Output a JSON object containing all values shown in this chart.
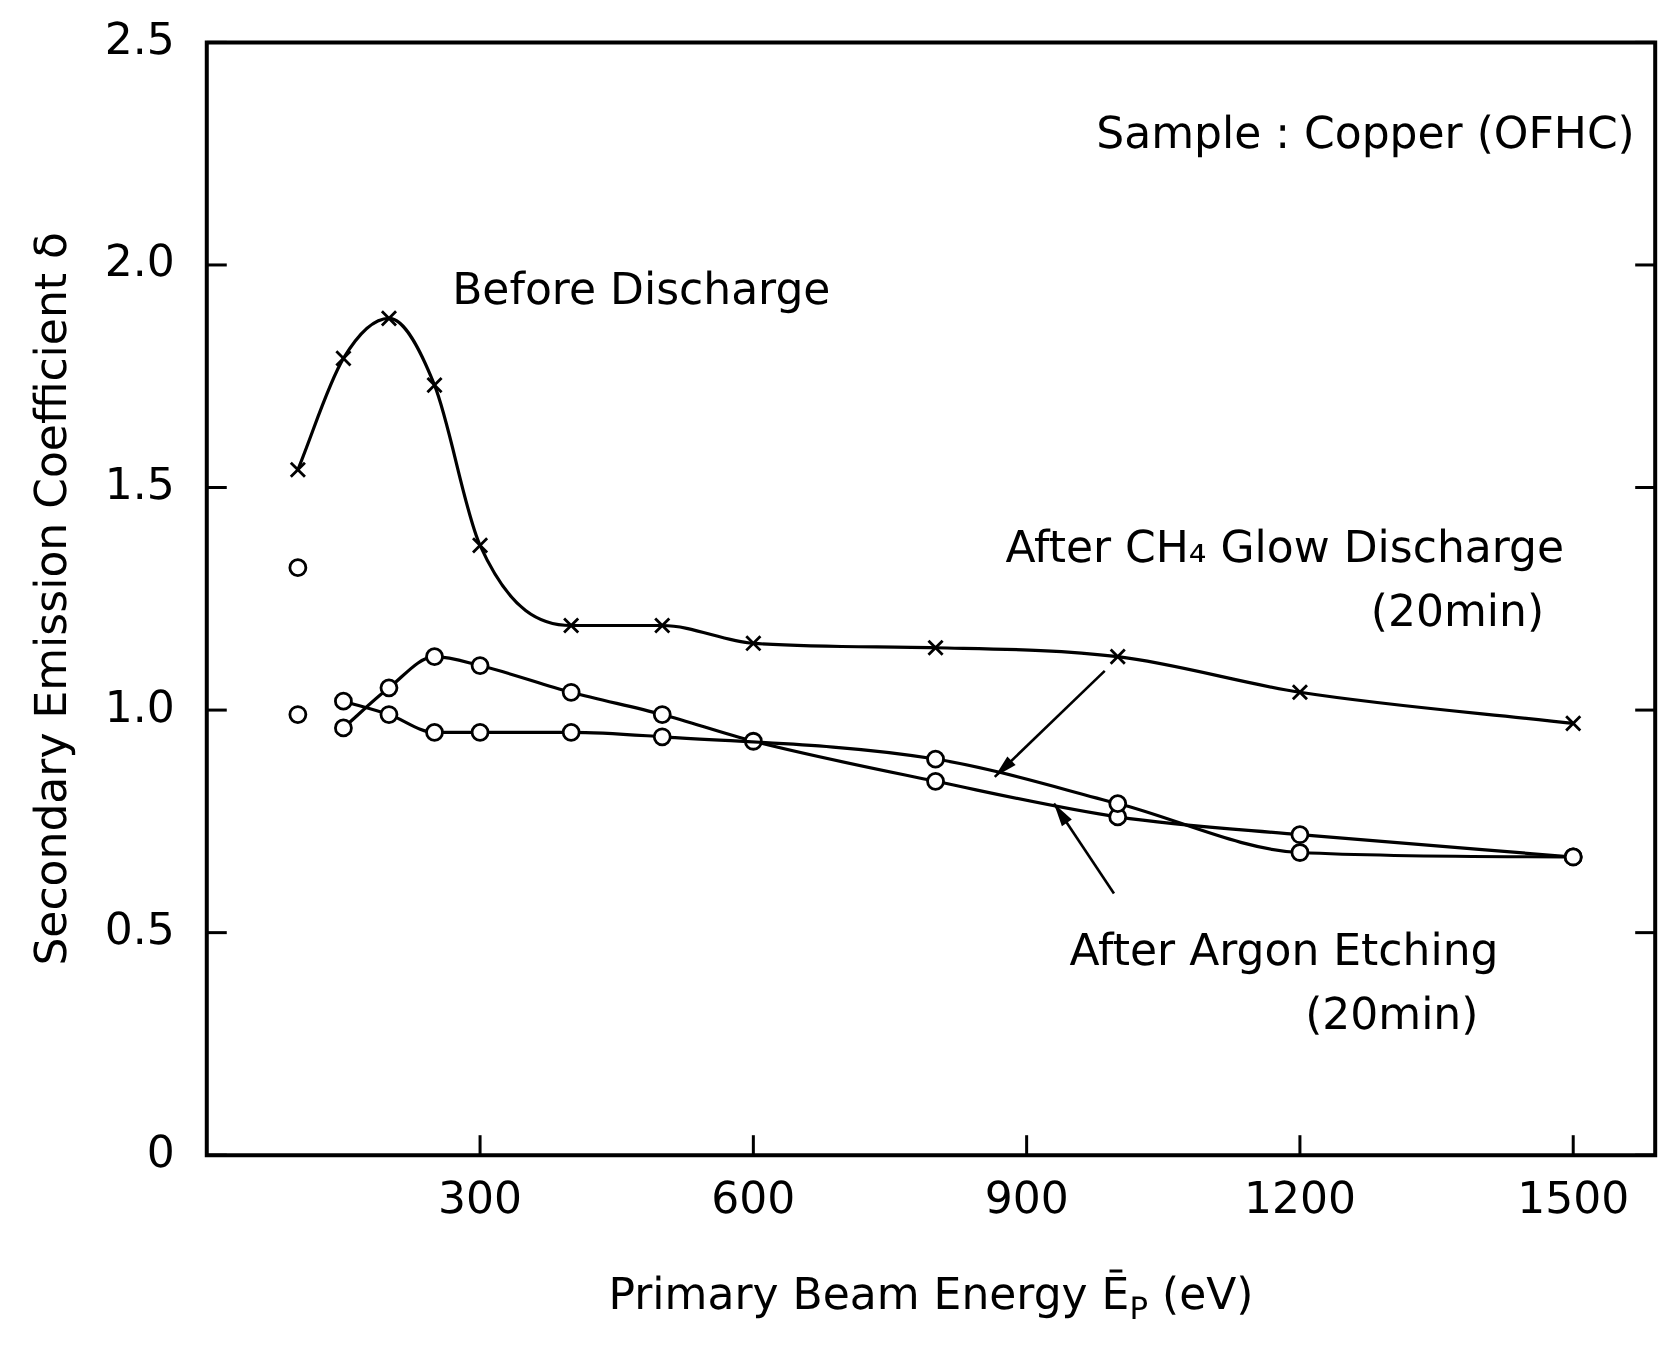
{
  "chart_data": {
    "type": "line",
    "xlabel": "Primary Beam Energy Ē$_{P}$ (eV)",
    "ylabel": "Secondary Emission Coefficient δ",
    "xlim": [
      0,
      1590
    ],
    "xticks": [
      300,
      600,
      900,
      1200,
      1500
    ],
    "ylim": [
      0,
      2.5
    ],
    "yticks": [
      0,
      {
        "value": 0.5,
        "label": "0.5"
      },
      {
        "value": 1,
        "label": "1.0"
      },
      {
        "value": 1.5,
        "label": "1.5"
      },
      {
        "value": 2,
        "label": "2.0"
      },
      {
        "value": 2.5,
        "label": "2.5"
      }
    ],
    "grid": false,
    "legend": false,
    "line_style": "solid",
    "series": [
      {
        "marker": "cross",
        "color": "#000000",
        "x": [
          100,
          150,
          200,
          250,
          300,
          400,
          500,
          600,
          800,
          1000,
          1200,
          1500
        ],
        "values": [
          1.54,
          1.79,
          1.88,
          1.73,
          1.37,
          1.19,
          1.19,
          1.15,
          1.14,
          1.12,
          1.04,
          0.97
        ]
      },
      {
        "marker": "circle",
        "color": "#000000",
        "x": [
          100,
          125,
          150,
          200,
          250,
          300,
          400,
          500,
          800,
          1000,
          1200,
          1500
        ],
        "values": [
          1.32,
          null,
          1.02,
          0.99,
          0.95,
          0.95,
          0.95,
          0.94,
          0.89,
          0.79,
          0.68,
          0.67
        ]
      },
      {
        "marker": "circle",
        "color": "#000000",
        "x": [
          100,
          125,
          150,
          200,
          250,
          300,
          400,
          500,
          600,
          800,
          1000,
          1200,
          1500
        ],
        "values": [
          0.99,
          null,
          0.96,
          1.05,
          1.12,
          1.1,
          1.04,
          0.99,
          0.93,
          0.84,
          0.76,
          0.72,
          0.67
        ]
      }
    ],
    "annotations": [
      "Sample : Copper (OFHC)",
      "Before Discharge",
      {
        "text": "After CH₄ Glow Discharge\n(20min)",
        "x": 865,
        "y": 0.85
      },
      {
        "text": "After Argon Etching\n(20min)",
        "x": 930,
        "y": 0.79
      }
    ]
  }
}
